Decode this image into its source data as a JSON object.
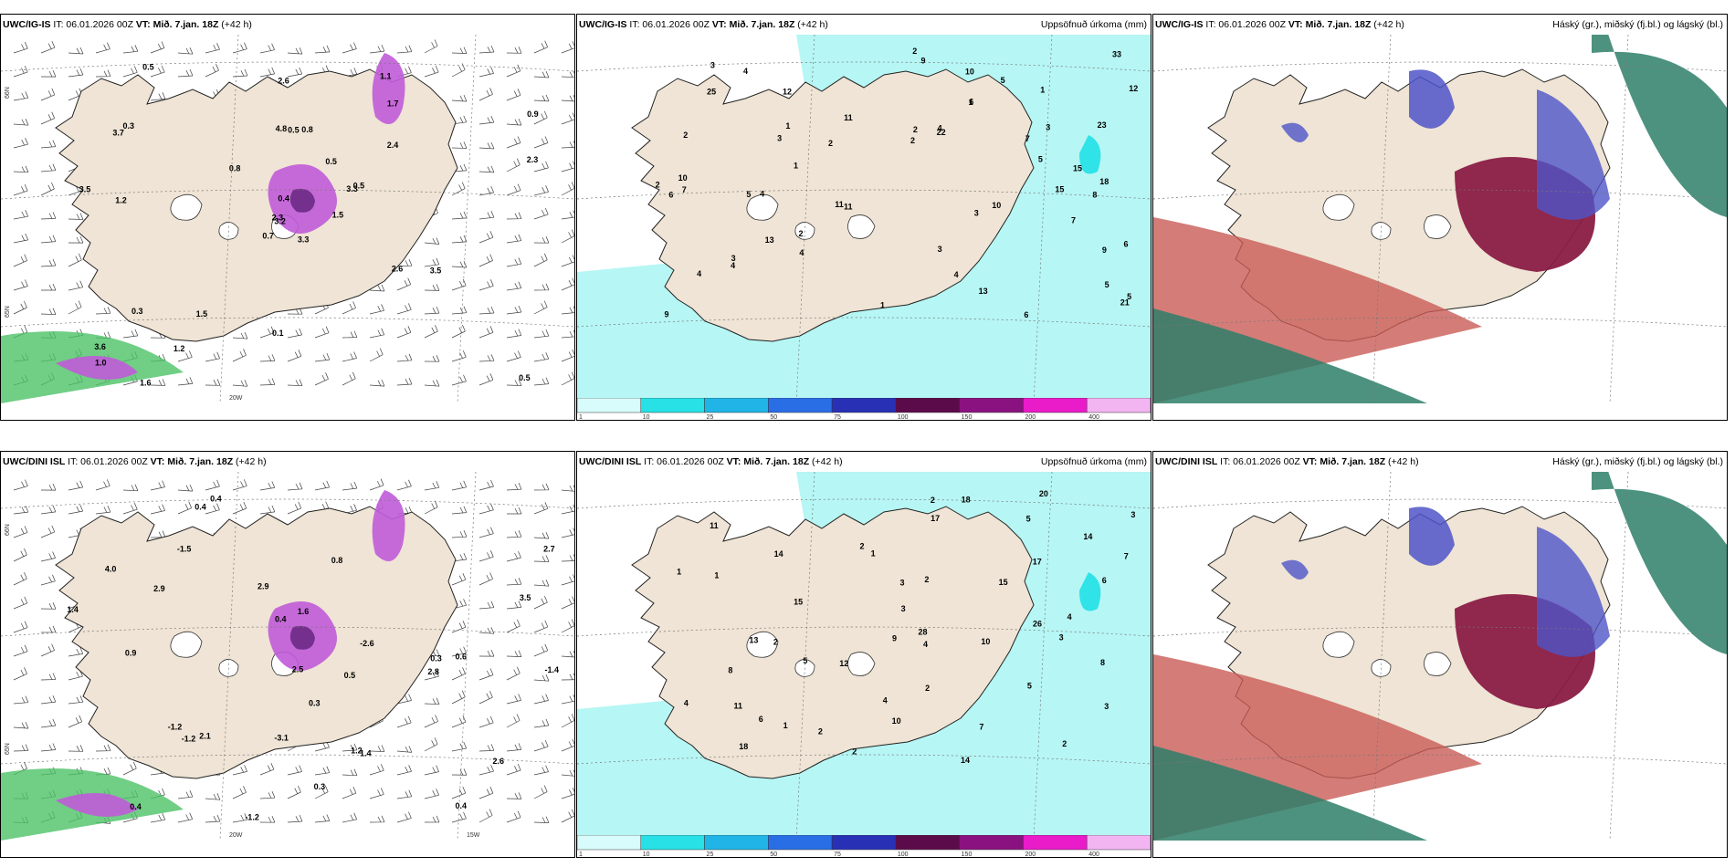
{
  "colors": {
    "land": "#efe4d5",
    "sea_left": "#ffffff",
    "precip_light": "#b6f6f4",
    "precip_med": "#2fe3e8",
    "snow_purple": "#c05bd8",
    "snow_dark": "#6b2a86",
    "green": "#4cc266",
    "cloud_blue": "#4f55c8",
    "cloud_maroon": "#8a1c44",
    "cloud_red": "#c95b55",
    "cloud_green": "#2e7f68"
  },
  "colorbar": {
    "ticks": [
      "1",
      "10",
      "25",
      "50",
      "75",
      "100",
      "150",
      "200",
      "400"
    ],
    "colors": [
      "#d8fbfb",
      "#27e1e6",
      "#20b5e6",
      "#2a6ee6",
      "#2831b5",
      "#5c0b4a",
      "#8a1280",
      "#ea1bc9",
      "#f2b5f2"
    ]
  },
  "panels": {
    "top_left": {
      "model": "UWC/IG-IS",
      "it_label": "IT: 06.01.2026 00Z",
      "vt_label": "VT: Mið. 7.jan. 18Z",
      "lead": "(+42 h)",
      "lon_labels": [
        "20W"
      ],
      "lat_labels": [
        "66N",
        "65N"
      ],
      "values": [
        "3.3",
        "3.7",
        "3.2",
        "3.6",
        "3.3",
        "1.5",
        "1.1",
        "0.8",
        "1.7",
        "1.5",
        "0.5",
        "0.5",
        "1.2",
        "0.9",
        "0.7",
        "2.4",
        "1.6",
        "4.8",
        "0.5",
        "0.3",
        "0.8",
        "1.0",
        "1.2",
        "0.5",
        "0.5",
        "3.5",
        "0.3",
        "2.6",
        "3.5",
        "2.6",
        "2.3",
        "2.3",
        "0.1",
        "0.4"
      ]
    },
    "top_mid": {
      "model": "UWC/IG-IS",
      "it_label": "IT: 06.01.2026 00Z",
      "vt_label": "VT: Mið. 7.jan. 18Z",
      "lead": "(+42 h)",
      "title": "Uppsöfnuð úrkoma (mm)",
      "values": [
        "1",
        "2",
        "3",
        "2",
        "4",
        "2",
        "3",
        "4",
        "1",
        "2",
        "4",
        "3",
        "2",
        "4",
        "7",
        "6",
        "9",
        "3",
        "5",
        "9",
        "6",
        "11",
        "12",
        "23",
        "11",
        "11",
        "33",
        "10",
        "22",
        "5",
        "10",
        "13",
        "12",
        "13",
        "10",
        "6",
        "4",
        "4",
        "2",
        "18",
        "25",
        "21",
        "15",
        "15",
        "1",
        "1",
        "1",
        "5",
        "2",
        "8",
        "7",
        "5",
        "5",
        "3",
        "9",
        "7",
        "6",
        "3",
        "4"
      ]
    },
    "top_right": {
      "model": "UWC/IG-IS",
      "it_label": "IT: 06.01.2026 00Z",
      "vt_label": "VT: Mið. 7.jan. 18Z",
      "lead": "(+42 h)",
      "title": "Háský (gr.), miðský (fj.bl.) og lágský (bl.)"
    },
    "bot_left": {
      "model": "UWC/DINI ISL",
      "it_label": "IT: 06.01.2026 00Z",
      "vt_label": "VT: Mið. 7.jan. 18Z",
      "lead": "(+42 h)",
      "lon_labels": [
        "20W",
        "15W"
      ],
      "lat_labels": [
        "66N",
        "65N"
      ],
      "values": [
        "2.9",
        "4.0",
        "0.4",
        "0.4",
        "2.1",
        "0.8",
        "1.4",
        "0.5",
        "2.6",
        "2.8",
        "0.4",
        "0.3",
        "0.4",
        "0.6",
        "0.3",
        "0.3",
        "2.9",
        "2.5",
        "-1.2",
        "-3.1",
        "-1.4",
        "-1.2",
        "-1.5",
        "-1.2",
        "3.5",
        "0.4",
        "2.7",
        "1.4",
        "1.6",
        "0.9",
        "-2.6",
        "1.2"
      ]
    },
    "bot_mid": {
      "model": "UWC/DINI ISL",
      "it_label": "IT: 06.01.2026 00Z",
      "vt_label": "VT: Mið. 7.jan. 18Z",
      "lead": "(+42 h)",
      "title": "Uppsöfnuð úrkoma (mm)",
      "values": [
        "1",
        "2",
        "3",
        "2",
        "7",
        "5",
        "3",
        "4",
        "2",
        "1",
        "2",
        "6",
        "15",
        "11",
        "14",
        "14",
        "8",
        "4",
        "28",
        "11",
        "26",
        "17",
        "18",
        "12",
        "10",
        "15",
        "13",
        "2",
        "3",
        "4",
        "5",
        "8",
        "20",
        "18",
        "17",
        "14",
        "10",
        "2",
        "2",
        "7",
        "1",
        "1",
        "3",
        "5",
        "6",
        "2",
        "3",
        "4",
        "9"
      ]
    },
    "bot_right": {
      "model": "UWC/DINI ISL",
      "it_label": "IT: 06.01.2026 00Z",
      "vt_label": "VT: Mið. 7.jan. 18Z",
      "lead": "(+42 h)",
      "title": "Háský (gr.), miðský (fj.bl.) og lágský (bl.)"
    }
  }
}
